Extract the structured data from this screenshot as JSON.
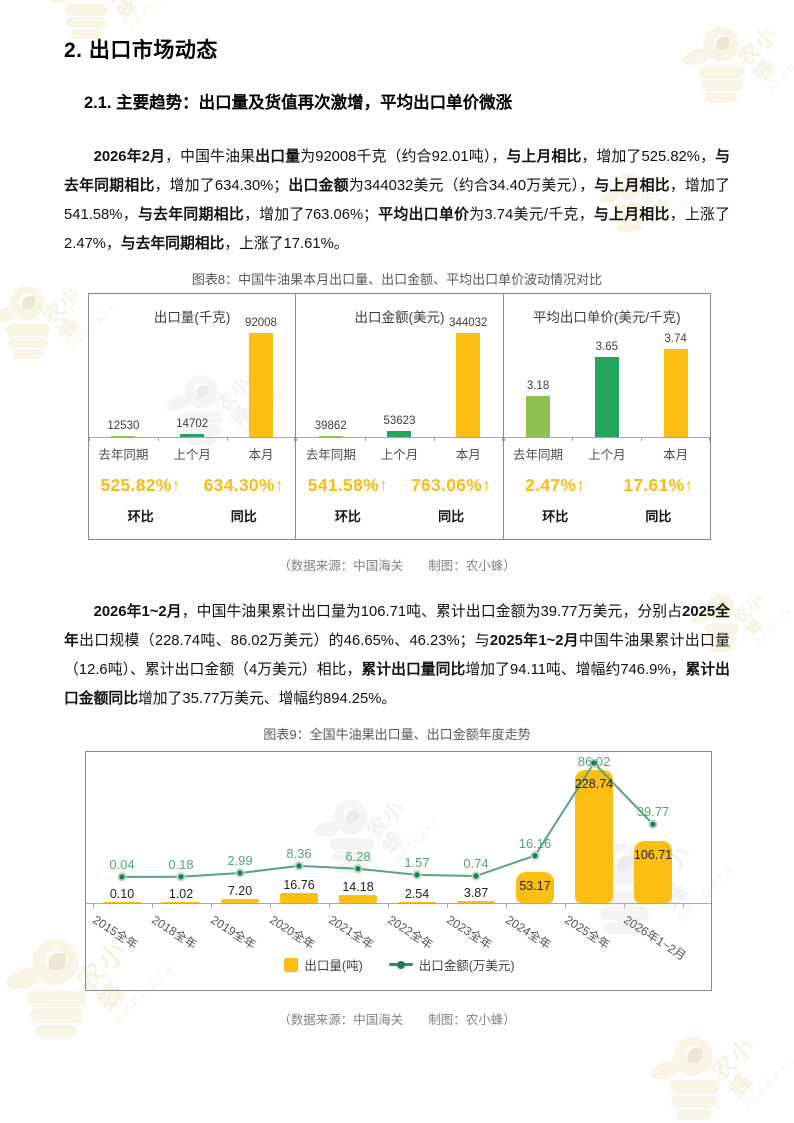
{
  "branding": {
    "watermark_cn": "农小蜂",
    "watermark_en": "BEEDATA"
  },
  "headings": {
    "h1": "2. 出口市场动态",
    "h2": "2.1. 主要趋势：出口量及货值再次激增，平均出口单价微涨"
  },
  "paragraphs": {
    "p1": [
      {
        "b": 1,
        "t": "2026年2月"
      },
      {
        "t": "，中国牛油果"
      },
      {
        "b": 1,
        "t": "出口量"
      },
      {
        "t": "为92008千克（约合92.01吨），"
      },
      {
        "b": 1,
        "t": "与上月相比"
      },
      {
        "t": "，增加了525.82%，"
      },
      {
        "b": 1,
        "t": "与去年同期相比"
      },
      {
        "t": "，增加了634.30%；"
      },
      {
        "b": 1,
        "t": "出口金额"
      },
      {
        "t": "为344032美元（约合34.40万美元），"
      },
      {
        "b": 1,
        "t": "与上月相比"
      },
      {
        "t": "，增加了541.58%，"
      },
      {
        "b": 1,
        "t": "与去年同期相比"
      },
      {
        "t": "，增加了763.06%；"
      },
      {
        "b": 1,
        "t": "平均出口单价"
      },
      {
        "t": "为3.74美元/千克，"
      },
      {
        "b": 1,
        "t": "与上月相比"
      },
      {
        "t": "，上涨了2.47%，"
      },
      {
        "b": 1,
        "t": "与去年同期相比"
      },
      {
        "t": "，上涨了17.61%。"
      }
    ],
    "p2": [
      {
        "b": 1,
        "t": "2026年1~2月"
      },
      {
        "t": "，中国牛油果累计出口量为106.71吨、累计出口金额为39.77万美元，分别占"
      },
      {
        "b": 1,
        "t": "2025全年"
      },
      {
        "t": "出口规模（228.74吨、86.02万美元）的46.65%、46.23%；与"
      },
      {
        "b": 1,
        "t": "2025年1~2月"
      },
      {
        "t": "中国牛油果累计出口量（12.6吨）、累计出口金额（4万美元）相比，"
      },
      {
        "b": 1,
        "t": "累计出口量同比"
      },
      {
        "t": "增加了94.11吨、增幅约746.9%，"
      },
      {
        "b": 1,
        "t": "累计出口金额同比"
      },
      {
        "t": "增加了35.77万美元、增幅约894.25%。"
      }
    ]
  },
  "chart_data": [
    {
      "id": "figure8",
      "type": "bar",
      "title": "图表8：中国牛油果本月出口量、出口金额、平均出口单价波动情况对比",
      "source": "（数据来源：中国海关　　制图：农小蜂）",
      "categories": [
        "去年同期",
        "上个月",
        "本月"
      ],
      "bar_colors": [
        "#8FBE52",
        "#23A45F",
        "#FBBE13"
      ],
      "compare_labels": [
        "环比",
        "同比"
      ],
      "panels": [
        {
          "subtitle": "出口量(千克)",
          "values": [
            12530,
            14702,
            92008
          ],
          "labels": [
            "12530",
            "14702",
            "92008"
          ],
          "ylim": [
            12200,
            92008
          ],
          "mom": "525.82%↑",
          "yoy": "634.30%↑"
        },
        {
          "subtitle": "出口金额(美元)",
          "values": [
            39862,
            53623,
            344032
          ],
          "labels": [
            "39862",
            "53623",
            "344032"
          ],
          "ylim": [
            36000,
            344032
          ],
          "mom": "541.58%↑",
          "yoy": "763.06%↑"
        },
        {
          "subtitle": "平均出口单价(美元/千克)",
          "values": [
            3.18,
            3.65,
            3.74
          ],
          "labels": [
            "3.18",
            "3.65",
            "3.74"
          ],
          "ylim": [
            2.7,
            3.74
          ],
          "mom": "2.47%↑",
          "yoy": "17.61%↑"
        }
      ],
      "legend_position": "none",
      "grid": false
    },
    {
      "id": "figure9",
      "type": "bar+line",
      "title": "图表9：全国牛油果出口量、出口金额年度走势",
      "source": "（数据来源：中国海关　　制图：农小蜂）",
      "categories": [
        "2015全年",
        "2018全年",
        "2019全年",
        "2020全年",
        "2021全年",
        "2022全年",
        "2023全年",
        "2024全年",
        "2025全年",
        "2026年1~2月"
      ],
      "series": [
        {
          "name": "出口量(吨)",
          "type": "bar",
          "color": "#FBBE13",
          "values": [
            0.1,
            1.02,
            7.2,
            16.76,
            14.18,
            2.54,
            3.87,
            53.17,
            228.74,
            106.71
          ],
          "labels": [
            "0.10",
            "1.02",
            "7.20",
            "16.76",
            "14.18",
            "2.54",
            "3.87",
            "53.17",
            "228.74",
            "106.71"
          ]
        },
        {
          "name": "出口金额(万美元)",
          "type": "line",
          "color": "#55A57E",
          "marker_color": "#1F7C4E",
          "values": [
            0.04,
            0.18,
            2.99,
            8.36,
            6.28,
            1.57,
            0.74,
            16.16,
            86.02,
            39.77
          ],
          "labels": [
            "0.04",
            "0.18",
            "2.99",
            "8.36",
            "6.28",
            "1.57",
            "0.74",
            "16.16",
            "86.02",
            "39.77"
          ]
        }
      ],
      "ylim_bar": [
        0,
        228.74
      ],
      "ylim_line": [
        0,
        95
      ],
      "legend_position": "bottom",
      "grid": false
    }
  ]
}
